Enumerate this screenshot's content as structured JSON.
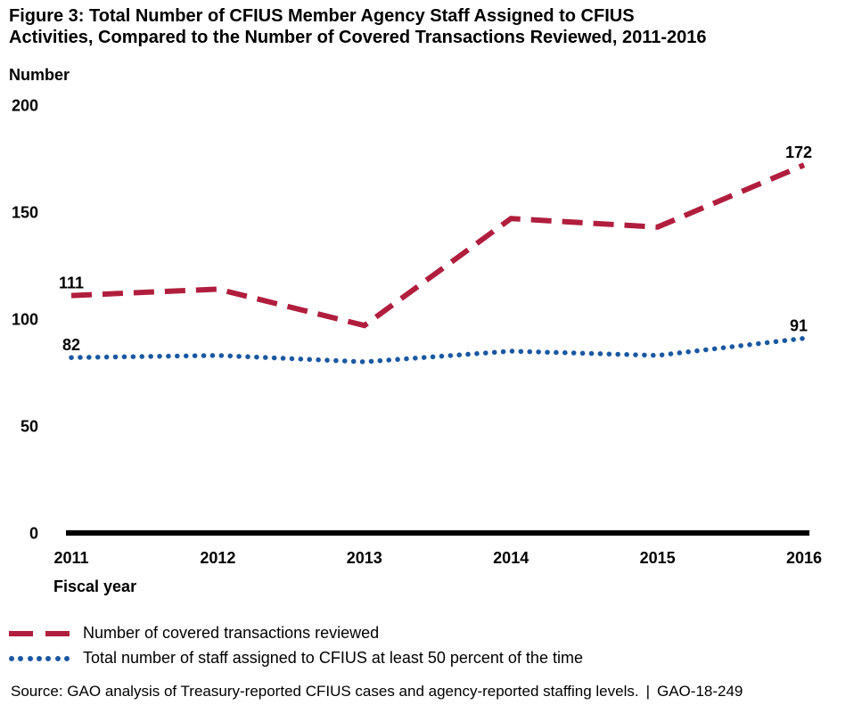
{
  "page": {
    "title_line1": "Figure 3: Total Number of CFIUS Member Agency Staff Assigned to CFIUS",
    "title_line2": "Activities, Compared to the Number of Covered Transactions Reviewed, 2011-2016"
  },
  "chart_data": {
    "type": "line",
    "title": "Figure 3: Total Number of CFIUS Member Agency Staff Assigned to CFIUS Activities, Compared to the Number of Covered Transactions Reviewed, 2011-2016",
    "ylabel": "Number",
    "xlabel": "Fiscal year",
    "x": [
      "2011",
      "2012",
      "2013",
      "2014",
      "2015",
      "2016"
    ],
    "yticks": [
      200,
      150,
      100,
      50,
      0
    ],
    "ylim": [
      0,
      200
    ],
    "grid": false,
    "legend_position": "below-left",
    "axis_color": "#000000",
    "series": [
      {
        "name": "Number of covered transactions reviewed",
        "line_style": "dashed",
        "color": "#B11E3D",
        "values": [
          111,
          114,
          97,
          147,
          143,
          172
        ],
        "labeled_points": [
          0,
          5
        ]
      },
      {
        "name": "Total number of staff assigned to CFIUS at least 50 percent of the time",
        "line_style": "dotted",
        "color": "#1B58A2",
        "values": [
          82,
          83,
          80,
          85,
          83,
          91
        ],
        "labeled_points": [
          0,
          5
        ]
      }
    ]
  },
  "footer": {
    "source_text": "Source: GAO analysis of Treasury-reported CFIUS cases and agency-reported staffing levels.",
    "separator": "|",
    "report_id": "GAO-18-249"
  }
}
